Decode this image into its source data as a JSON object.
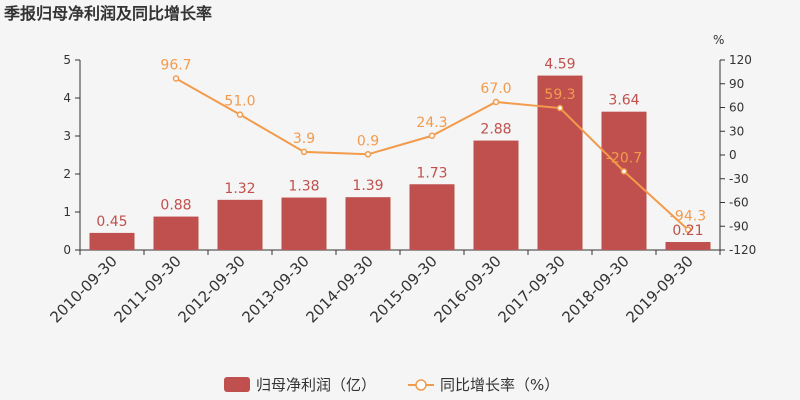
{
  "chart_data": {
    "type": "bar+line",
    "title": "季报归母净利润及同比增长率",
    "categories": [
      "2010-09-30",
      "2011-09-30",
      "2012-09-30",
      "2013-09-30",
      "2014-09-30",
      "2015-09-30",
      "2016-09-30",
      "2017-09-30",
      "2018-09-30",
      "2019-09-30"
    ],
    "series": [
      {
        "name": "归母净利润（亿）",
        "type": "bar",
        "axis": "left",
        "color": "#c0504d",
        "values": [
          0.45,
          0.88,
          1.32,
          1.38,
          1.39,
          1.73,
          2.88,
          4.59,
          3.64,
          0.21
        ],
        "labels": [
          "0.45",
          "0.88",
          "1.32",
          "1.38",
          "1.39",
          "1.73",
          "2.88",
          "4.59",
          "3.64",
          "0.21"
        ]
      },
      {
        "name": "同比增长率（%）",
        "type": "line",
        "axis": "right",
        "color": "#f29b4c",
        "values": [
          null,
          96.7,
          51.0,
          3.9,
          0.9,
          24.3,
          67.0,
          59.3,
          -20.7,
          -94.3
        ],
        "labels": [
          "",
          "96.7",
          "51.0",
          "3.9",
          "0.9",
          "24.3",
          "67.0",
          "59.3",
          "-20.7",
          "-94.3"
        ]
      }
    ],
    "left_axis": {
      "min": 0,
      "max": 5,
      "ticks": [
        "0",
        "1",
        "2",
        "3",
        "4",
        "5"
      ]
    },
    "right_axis": {
      "min": -120,
      "max": 120,
      "unit": "%",
      "ticks": [
        "-120",
        "-90",
        "-60",
        "-30",
        "0",
        "30",
        "60",
        "90",
        "120"
      ]
    },
    "legend_position": "bottom"
  }
}
